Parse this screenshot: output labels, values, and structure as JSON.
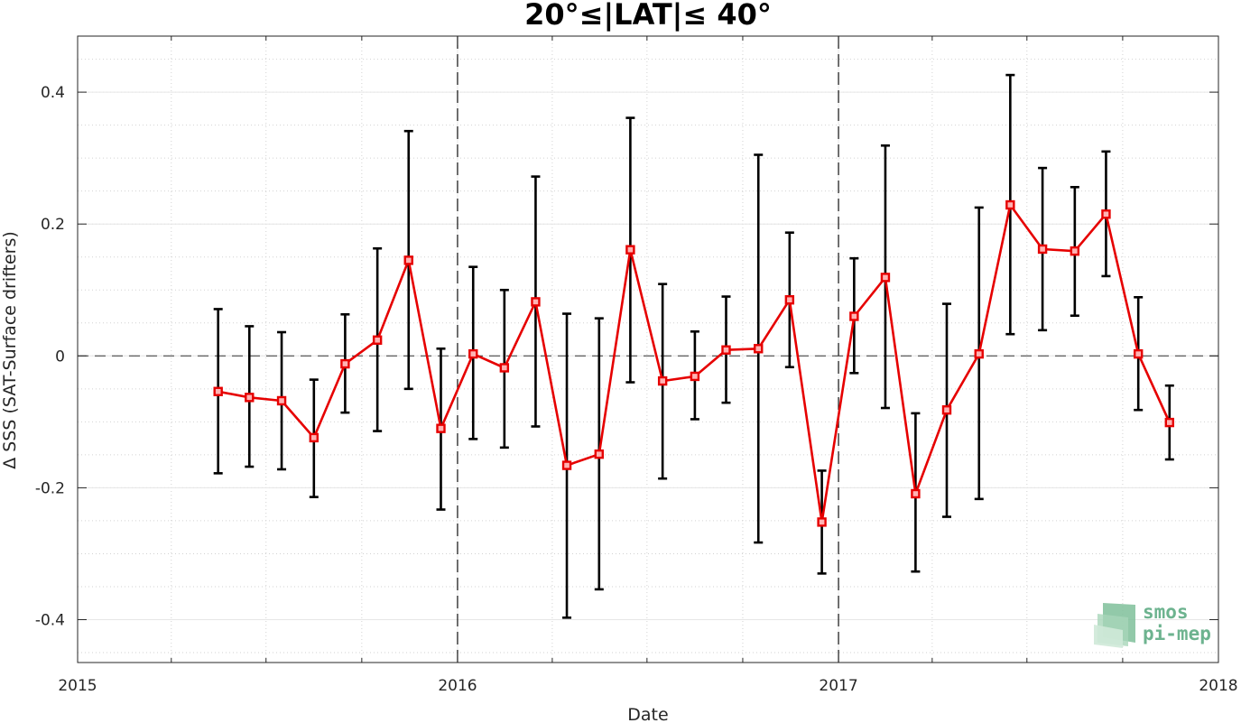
{
  "chart_data": {
    "type": "line",
    "title": "20°≤|LAT|≤ 40°",
    "xlabel": "Date",
    "ylabel": "Δ SSS (SAT-Surface drifters)",
    "xlim": [
      "2015-01-01",
      "2018-01-01"
    ],
    "ylim": [
      -0.465,
      0.485
    ],
    "xticks": [
      {
        "date": "2015-01-01",
        "label": "2015"
      },
      {
        "date": "2016-01-01",
        "label": "2016"
      },
      {
        "date": "2017-01-01",
        "label": "2017"
      },
      {
        "date": "2018-01-01",
        "label": "2018"
      }
    ],
    "yticks": [
      {
        "value": -0.4,
        "label": "-0.4"
      },
      {
        "value": -0.2,
        "label": "-0.2"
      },
      {
        "value": 0,
        "label": "0"
      },
      {
        "value": 0.2,
        "label": "0.2"
      },
      {
        "value": 0.4,
        "label": "0.4"
      }
    ],
    "grid": true,
    "minor_grid": true,
    "zero_line": true,
    "year_separators": [
      "2016-01-01",
      "2017-01-01"
    ],
    "series": [
      {
        "color": "#e60000",
        "errorbar_color": "#000000",
        "marker": "square",
        "points": [
          {
            "date": "2015-05-16",
            "y": -0.054,
            "lo": -0.178,
            "hi": 0.071
          },
          {
            "date": "2015-06-15",
            "y": -0.063,
            "lo": -0.168,
            "hi": 0.045
          },
          {
            "date": "2015-07-16",
            "y": -0.068,
            "lo": -0.172,
            "hi": 0.036
          },
          {
            "date": "2015-08-16",
            "y": -0.124,
            "lo": -0.214,
            "hi": -0.036
          },
          {
            "date": "2015-09-15",
            "y": -0.012,
            "lo": -0.086,
            "hi": 0.063
          },
          {
            "date": "2015-10-16",
            "y": 0.024,
            "lo": -0.114,
            "hi": 0.163
          },
          {
            "date": "2015-11-15",
            "y": 0.145,
            "lo": -0.05,
            "hi": 0.341
          },
          {
            "date": "2015-12-16",
            "y": -0.11,
            "lo": -0.233,
            "hi": 0.011
          },
          {
            "date": "2016-01-16",
            "y": 0.003,
            "lo": -0.126,
            "hi": 0.135
          },
          {
            "date": "2016-02-15",
            "y": -0.018,
            "lo": -0.139,
            "hi": 0.1
          },
          {
            "date": "2016-03-16",
            "y": 0.082,
            "lo": -0.107,
            "hi": 0.272
          },
          {
            "date": "2016-04-15",
            "y": -0.166,
            "lo": -0.397,
            "hi": 0.064
          },
          {
            "date": "2016-05-16",
            "y": -0.149,
            "lo": -0.354,
            "hi": 0.057
          },
          {
            "date": "2016-06-15",
            "y": 0.161,
            "lo": -0.04,
            "hi": 0.361
          },
          {
            "date": "2016-07-16",
            "y": -0.038,
            "lo": -0.186,
            "hi": 0.109
          },
          {
            "date": "2016-08-16",
            "y": -0.031,
            "lo": -0.096,
            "hi": 0.037
          },
          {
            "date": "2016-09-15",
            "y": 0.009,
            "lo": -0.071,
            "hi": 0.09
          },
          {
            "date": "2016-10-16",
            "y": 0.011,
            "lo": -0.283,
            "hi": 0.305
          },
          {
            "date": "2016-11-15",
            "y": 0.085,
            "lo": -0.017,
            "hi": 0.187
          },
          {
            "date": "2016-12-16",
            "y": -0.252,
            "lo": -0.33,
            "hi": -0.174
          },
          {
            "date": "2017-01-16",
            "y": 0.06,
            "lo": -0.026,
            "hi": 0.148
          },
          {
            "date": "2017-02-15",
            "y": 0.119,
            "lo": -0.079,
            "hi": 0.319
          },
          {
            "date": "2017-03-16",
            "y": -0.209,
            "lo": -0.327,
            "hi": -0.087
          },
          {
            "date": "2017-04-15",
            "y": -0.082,
            "lo": -0.244,
            "hi": 0.079
          },
          {
            "date": "2017-05-16",
            "y": 0.003,
            "lo": -0.217,
            "hi": 0.225
          },
          {
            "date": "2017-06-15",
            "y": 0.229,
            "lo": 0.033,
            "hi": 0.426
          },
          {
            "date": "2017-07-16",
            "y": 0.162,
            "lo": 0.039,
            "hi": 0.285
          },
          {
            "date": "2017-08-16",
            "y": 0.159,
            "lo": 0.061,
            "hi": 0.256
          },
          {
            "date": "2017-09-15",
            "y": 0.215,
            "lo": 0.121,
            "hi": 0.31
          },
          {
            "date": "2017-10-16",
            "y": 0.003,
            "lo": -0.082,
            "hi": 0.089
          },
          {
            "date": "2017-11-15",
            "y": -0.101,
            "lo": -0.157,
            "hi": -0.045
          }
        ]
      }
    ]
  },
  "watermark": {
    "line1": "smos",
    "line2": "pi-mep",
    "color": "#6db38f"
  }
}
